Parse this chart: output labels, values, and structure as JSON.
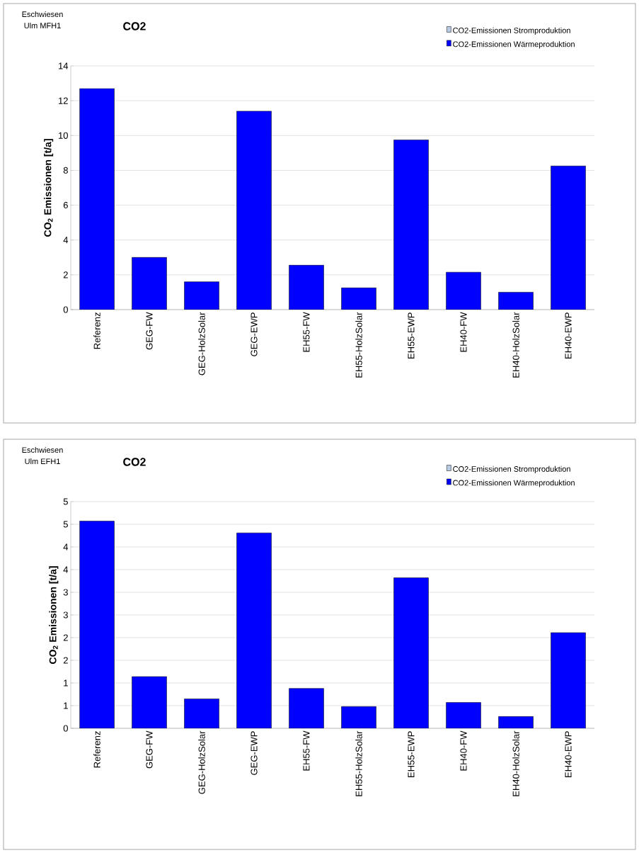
{
  "chart_data": [
    {
      "type": "bar",
      "title": "CO2",
      "annotations": [
        "Eschwiesen",
        "Ulm  MFH1"
      ],
      "ylabel": "CO$_{2}$ Emissionen [t/a]",
      "categories": [
        "Referenz",
        "GEG-FW",
        "GEG-HolzSolar",
        "GEG-EWP",
        "EH55-FW",
        "EH55-HolzSolar",
        "EH55-EWP",
        "EH40-FW",
        "EH40-HolzSolar",
        "EH40-EWP"
      ],
      "stacked": true,
      "series": [
        {
          "name": "CO2-Emissionen Stromproduktion",
          "color": "#b8cce4",
          "values": [
            0,
            0,
            0,
            0,
            0,
            0,
            0,
            0,
            0,
            0
          ]
        },
        {
          "name": "CO2-Emissionen Wärmeproduktion",
          "color": "#0000ff",
          "values": [
            12.7,
            3.0,
            1.6,
            11.4,
            2.55,
            1.25,
            9.75,
            2.15,
            1.0,
            8.25
          ]
        }
      ],
      "ylim": [
        0,
        14
      ],
      "yticks": [
        0,
        2,
        4,
        6,
        8,
        10,
        12,
        14
      ],
      "grid": "y",
      "legend": "top right"
    },
    {
      "type": "bar",
      "title": "CO2",
      "annotations": [
        "Eschwiesen",
        "Ulm  EFH1"
      ],
      "ylabel": "CO$_{2}$ Emissionen [t/a]",
      "categories": [
        "Referenz",
        "GEG-FW",
        "GEG-HolzSolar",
        "GEG-EWP",
        "EH55-FW",
        "EH55-HolzSolar",
        "EH55-EWP",
        "EH40-FW",
        "EH40-HolzSolar",
        "EH40-EWP"
      ],
      "stacked": true,
      "series": [
        {
          "name": "CO2-Emissionen Stromproduktion",
          "color": "#b8cce4",
          "values": [
            0,
            0,
            0,
            0,
            0,
            0,
            0,
            0,
            0,
            0
          ]
        },
        {
          "name": "CO2-Emissionen Wärmeproduktion",
          "color": "#0000ff",
          "values": [
            4.57,
            1.14,
            0.65,
            4.31,
            0.88,
            0.48,
            3.32,
            0.57,
            0.26,
            2.11
          ]
        }
      ],
      "ylim": [
        0,
        5
      ],
      "yticks": [
        0,
        {
          "value": 0.5,
          "label": "1"
        },
        1,
        {
          "value": 1.5,
          "label": "2"
        },
        2,
        {
          "value": 2.5,
          "label": "3"
        },
        3,
        {
          "value": 3.5,
          "label": "4"
        },
        4,
        {
          "value": 4.5,
          "label": "5"
        },
        5
      ],
      "grid": "y",
      "legend": "top right"
    }
  ]
}
